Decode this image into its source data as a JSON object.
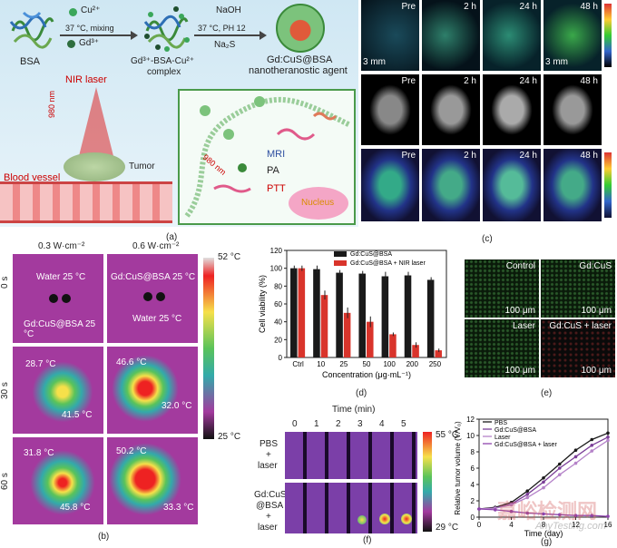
{
  "panel_a": {
    "label": "(a)",
    "bsa": "BSA",
    "cu": "Cu²⁺",
    "gd": "Gd³⁺",
    "step1": "37 °C, mixing",
    "complex1": "Gd³⁺-BSA-Cu²⁺",
    "complex2": "complex",
    "naoh": "NaOH",
    "step2": "37 °C, PH 12",
    "na2s": "Na₂S",
    "product1": "Gd:CuS@BSA",
    "product2": "nanotheranostic agent",
    "nir": "NIR laser",
    "wavelength": "980 nm",
    "wavelength2": "980 nm",
    "blood": "Blood vessel",
    "tumor": "Tumor",
    "mri": "MRI",
    "pa": "PA",
    "ptt": "PTT",
    "nucleus": "Nucleus"
  },
  "panel_c": {
    "label": "(c)",
    "times": [
      "Pre",
      "2 h",
      "24 h",
      "48 h"
    ],
    "scale": "3 mm"
  },
  "panel_b": {
    "label": "(b)",
    "col1": "0.3 W·cm⁻²",
    "col2": "0.6 W·cm⁻²",
    "rows": [
      "0 s",
      "30 s",
      "60 s"
    ],
    "water1": "Water 25 °C",
    "gd1": "Gd:CuS@BSA 25 °C",
    "gd2": "Gd:CuS@BSA 25 °C",
    "water2": "Water 25 °C",
    "t30a": "28.7 °C",
    "t30b": "41.5 °C",
    "t30c": "46.6 °C",
    "t30d": "32.0 °C",
    "t60a": "31.8 °C",
    "t60b": "45.8 °C",
    "t60c": "50.2 °C",
    "t60d": "33.3 °C",
    "cbar_max": "52 °C",
    "cbar_min": "25 °C"
  },
  "panel_e": {
    "label": "(e)",
    "tiles": [
      "Control",
      "Gd:CuS",
      "Laser",
      "Gd:CuS + laser"
    ],
    "scale": "100 μm"
  },
  "panel_f": {
    "label": "(f)",
    "time_title": "Time (min)",
    "times": [
      "0",
      "1",
      "2",
      "3",
      "4",
      "5"
    ],
    "row1": [
      "PBS",
      "+",
      "laser"
    ],
    "row2": [
      "Gd:CuS",
      "@BSA",
      "+",
      "laser"
    ],
    "cbar_max": "55 °C",
    "cbar_min": "29 °C"
  },
  "colors": {
    "black_bar": "#1a1a1a",
    "red_bar": "#d9342b",
    "pbs": "#1a1a1a",
    "gdcus": "#7b3f98",
    "laser": "#b583c9",
    "gdcus_laser": "#8e44ad"
  },
  "watermark": "嘉峪检测网",
  "watermark_url": "AnyTesting.com",
  "chart_data": [
    {
      "id": "d",
      "label": "(d)",
      "type": "bar",
      "ylabel": "Cell viability (%)",
      "xlabel": "Concentration (μg·mL⁻¹)",
      "categories": [
        "Ctrl",
        "10",
        "25",
        "50",
        "100",
        "200",
        "250"
      ],
      "ylim": [
        0,
        120
      ],
      "yticks": [
        0,
        20,
        40,
        60,
        80,
        100,
        120
      ],
      "series": [
        {
          "name": "Gd:CuS@BSA",
          "values": [
            100,
            99,
            95,
            94,
            91,
            92,
            87
          ]
        },
        {
          "name": "Gd:CuS@BSA + NIR laser",
          "values": [
            100,
            70,
            50,
            40,
            26,
            14,
            8
          ]
        }
      ],
      "errors": [
        [
          3,
          4,
          3,
          3,
          5,
          4,
          3
        ],
        [
          3,
          5,
          6,
          6,
          2,
          3,
          2
        ]
      ],
      "legend": "top-right"
    },
    {
      "id": "g",
      "label": "(g)",
      "type": "line",
      "ylabel": "Relative tumor volume (V/V₀)",
      "xlabel": "Time (day)",
      "x": [
        0,
        2,
        4,
        6,
        8,
        10,
        12,
        14,
        16
      ],
      "xticks": [
        0,
        4,
        8,
        12,
        16
      ],
      "ylim": [
        0,
        12
      ],
      "yticks": [
        0,
        2,
        4,
        6,
        8,
        10,
        12
      ],
      "series": [
        {
          "name": "PBS",
          "values": [
            1,
            1.2,
            1.8,
            3.2,
            4.8,
            6.5,
            8.2,
            9.5,
            10.3
          ]
        },
        {
          "name": "Gd:CuS@BSA",
          "values": [
            1,
            1.1,
            1.6,
            2.8,
            4.3,
            6.0,
            7.4,
            8.8,
            9.8
          ]
        },
        {
          "name": "Laser",
          "values": [
            1,
            1.1,
            1.5,
            2.4,
            3.6,
            5.2,
            6.6,
            8.1,
            9.4
          ]
        },
        {
          "name": "Gd:CuS@BSA + laser",
          "values": [
            1,
            0.9,
            0.7,
            0.5,
            0.4,
            0.3,
            0.2,
            0.2,
            0.1
          ]
        }
      ],
      "legend": "top-left"
    }
  ]
}
